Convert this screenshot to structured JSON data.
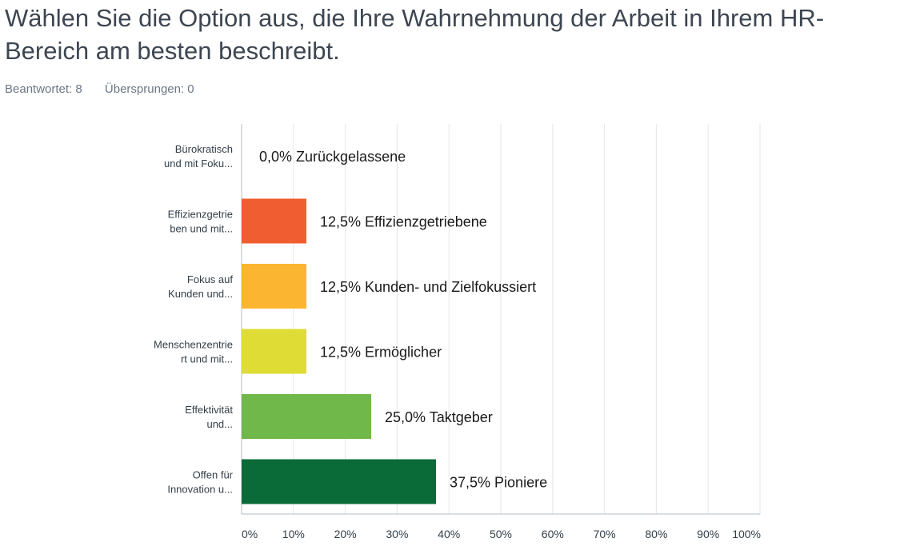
{
  "question": {
    "title": "Wählen Sie die Option aus, die Ihre Wahrnehmung der Arbeit in Ihrem HR-Bereich am besten beschreibt.",
    "answered_label": "Beantwortet: 8",
    "skipped_label": "Übersprungen: 0"
  },
  "chart_data": {
    "type": "bar",
    "orientation": "horizontal",
    "categories": [
      [
        "Bürokratisch",
        "und mit Foku..."
      ],
      [
        "Effizienzgetrie",
        "ben und mit..."
      ],
      [
        "Fokus auf",
        "Kunden und..."
      ],
      [
        "Menschenzentrie",
        "rt und mit..."
      ],
      [
        "Effektivität",
        "und..."
      ],
      [
        "Offen für",
        "Innovation u..."
      ]
    ],
    "values": [
      0.0,
      12.5,
      12.5,
      12.5,
      25.0,
      37.5
    ],
    "data_labels": [
      "0,0% Zurückgelassene",
      "12,5% Effizienzgetriebene",
      "12,5% Kunden- und Zielfokussiert",
      "12,5% Ermöglicher",
      "25,0% Taktgeber",
      "37,5% Pioniere"
    ],
    "colors": [
      "#9e9e9e",
      "#f05d30",
      "#fbb530",
      "#dedc35",
      "#70b84a",
      "#0b6b38"
    ],
    "xlim": [
      0,
      100
    ],
    "xticks": [
      "0%",
      "10%",
      "20%",
      "30%",
      "40%",
      "50%",
      "60%",
      "70%",
      "80%",
      "90%",
      "100%"
    ],
    "grid": true,
    "gridline_color": "#e4e6e8",
    "axis_color": "#b5bcc3"
  }
}
